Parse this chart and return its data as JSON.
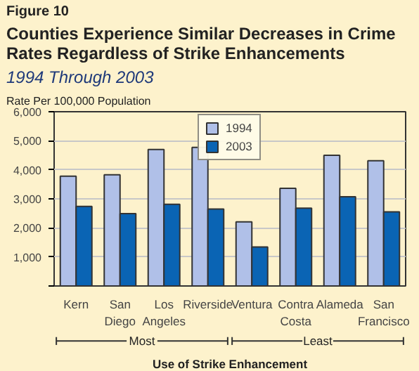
{
  "chart_data": {
    "type": "bar",
    "title": "Counties Experience Similar Decreases in Crime Rates Regardless of Strike Enhancements",
    "subtitle": "1994 Through 2003",
    "ylabel": "Rate Per 100,000 Population",
    "xlabel": "Use of Strike Enhancement",
    "categories": [
      "Kern",
      "San Diego",
      "Los Angeles",
      "Riverside",
      "Ventura",
      "Contra Costa",
      "Alameda",
      "San Francisco"
    ],
    "series": [
      {
        "name": "1994",
        "color": "#b0c0e8",
        "values": [
          3780,
          3830,
          4700,
          4770,
          2210,
          3360,
          4500,
          4310
        ]
      },
      {
        "name": "2003",
        "color": "#0a64b4",
        "values": [
          2740,
          2490,
          2810,
          2650,
          1340,
          2680,
          3070,
          2550
        ]
      }
    ],
    "ylim": [
      0,
      6000
    ],
    "yticks": [
      {
        "value": 0,
        "label": null
      },
      {
        "value": 1000,
        "label": "1,000"
      },
      {
        "value": 2000,
        "label": "2,000"
      },
      {
        "value": 3000,
        "label": "3,000"
      },
      {
        "value": 4000,
        "label": "4,000"
      },
      {
        "value": 5000,
        "label": "5,000"
      },
      {
        "value": 6000,
        "label": "6,000"
      }
    ],
    "grid": "y",
    "legend": "top",
    "annotations": [
      "Figure 10",
      "Most",
      "Least"
    ]
  }
}
